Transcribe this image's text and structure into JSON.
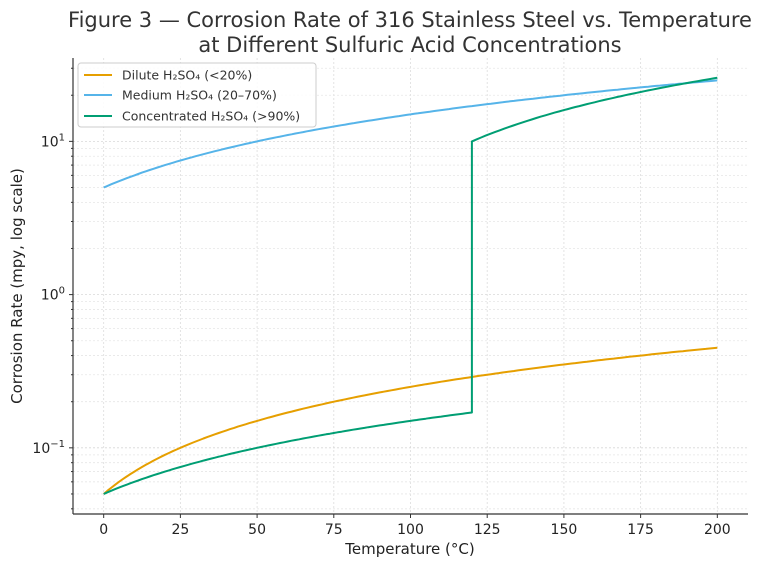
{
  "chart_data": {
    "type": "line",
    "title_lines": [
      "Figure 3 — Corrosion Rate of 316 Stainless Steel vs. Temperature",
      "at Different Sulfuric Acid Concentrations"
    ],
    "xlabel": "Temperature (°C)",
    "ylabel": "Corrosion Rate (mpy, log scale)",
    "xlim": [
      -10,
      210
    ],
    "ylim": [
      0.037,
      35
    ],
    "yscale": "log",
    "grid": true,
    "x_ticks": [
      0,
      25,
      50,
      75,
      100,
      125,
      150,
      175,
      200
    ],
    "x_tick_labels": [
      "0",
      "25",
      "50",
      "75",
      "100",
      "125",
      "150",
      "175",
      "200"
    ],
    "y_ticks": [
      {
        "value": 0.1,
        "base": "10",
        "exp": "−1"
      },
      {
        "value": 1,
        "base": "10",
        "exp": "0"
      },
      {
        "value": 10,
        "base": "10",
        "exp": "1"
      }
    ],
    "legend_position": "top-left",
    "series": [
      {
        "name": "Dilute H₂SO₄ (<20%)",
        "color": "#E69F00",
        "x": [
          0,
          25,
          50,
          75,
          100,
          125,
          150,
          175,
          200
        ],
        "values": [
          0.05,
          0.1,
          0.15,
          0.2,
          0.25,
          0.3,
          0.35,
          0.4,
          0.45
        ]
      },
      {
        "name": "Medium H₂SO₄ (20–70%)",
        "color": "#56B4E9",
        "x": [
          0,
          25,
          50,
          75,
          100,
          125,
          150,
          175,
          200
        ],
        "values": [
          5,
          7.5,
          10,
          12.5,
          15,
          17.5,
          20,
          22.5,
          25
        ]
      },
      {
        "name": "Concentrated H₂SO₄ (>90%)",
        "color": "#009E73",
        "x": [
          0,
          25,
          50,
          75,
          100,
          120,
          120,
          150,
          175,
          200
        ],
        "values": [
          0.05,
          0.075,
          0.1,
          0.125,
          0.15,
          0.17,
          10,
          16,
          21,
          26
        ]
      }
    ]
  }
}
